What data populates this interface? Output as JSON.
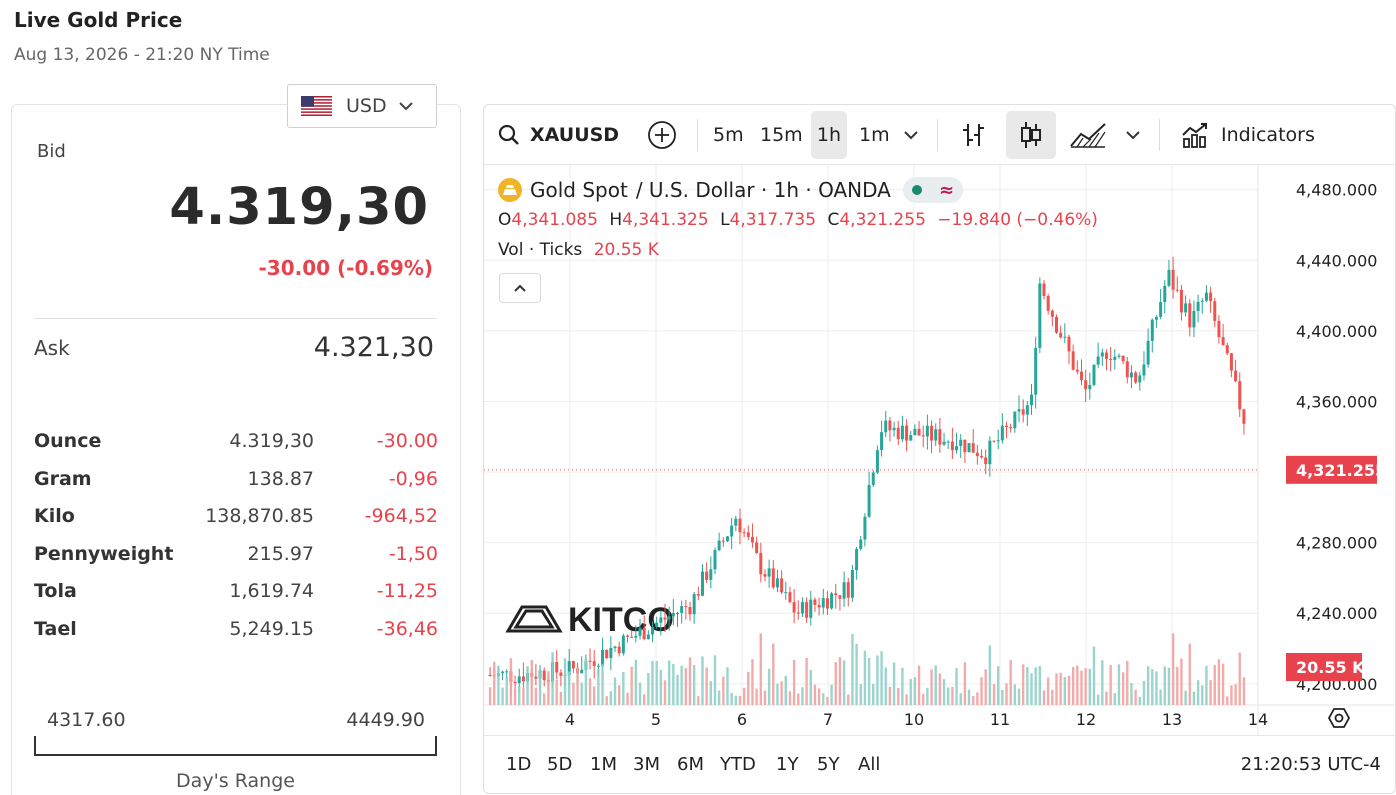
{
  "page": {
    "title": "Live Gold Price",
    "subtitle": "Aug 13, 2026 - 21:20 NY Time"
  },
  "currency": {
    "selected": "USD",
    "flag_icon": "us-flag-icon"
  },
  "quote": {
    "bid_label": "Bid",
    "bid_value": "4.319,30",
    "bid_change": "-30.00 (-0.69%)",
    "ask_label": "Ask",
    "ask_value": "4.321,30"
  },
  "units": [
    {
      "name": "Ounce",
      "price": "4.319,30",
      "change": "-30.00"
    },
    {
      "name": "Gram",
      "price": "138.87",
      "change": "-0,96"
    },
    {
      "name": "Kilo",
      "price": "138,870.85",
      "change": "-964,52"
    },
    {
      "name": "Pennyweight",
      "price": "215.97",
      "change": "-1,50"
    },
    {
      "name": "Tola",
      "price": "1,619.74",
      "change": "-11,25"
    },
    {
      "name": "Tael",
      "price": "5,249.15",
      "change": "-36,46"
    }
  ],
  "day_range": {
    "low": "4317.60",
    "high": "4449.90",
    "label": "Day's Range",
    "current_fraction": 0.01
  },
  "toolbar": {
    "symbol": "XAUUSD",
    "intervals": [
      "5m",
      "15m",
      "1h",
      "1m"
    ],
    "active_interval": "1h",
    "indicators_label": "Indicators"
  },
  "legend": {
    "title": "Gold Spot",
    "title_rest": "/ U.S. Dollar · 1h · OANDA",
    "o_label": "O",
    "o_value": "4,341.085",
    "h_label": "H",
    "h_value": "4,341.325",
    "l_label": "L",
    "l_value": "4,317.735",
    "c_label": "C",
    "c_value": "4,321.255",
    "change": "−19.840 (−0.46%)",
    "vol_label": "Vol · Ticks",
    "vol_value": "20.55 K"
  },
  "colors": {
    "up": "#26a69a",
    "down": "#ef5350",
    "accent_red": "#e8434d",
    "gold": "#f0b429"
  },
  "watermark": "KITCO",
  "chart_data": {
    "type": "candlestick",
    "y_ticks": [
      "4,480.000",
      "4,440.000",
      "4,400.000",
      "4,360.000",
      "4,320.000",
      "4,280.000",
      "4,240.000",
      "4,200.000"
    ],
    "y_tick_values": [
      4480,
      4440,
      4400,
      4360,
      4320,
      4280,
      4240,
      4200
    ],
    "x_ticks": [
      "4",
      "5",
      "6",
      "7",
      "10",
      "11",
      "12",
      "13",
      "14"
    ],
    "ylim": [
      4188,
      4494
    ],
    "last_price_label": "4,321.255",
    "last_price": 4321.255,
    "last_volume_label": "20.55 K",
    "segments": [
      {
        "x": "4",
        "open": 4205,
        "close": 4205,
        "low": 4198,
        "high": 4212
      },
      {
        "x": "5",
        "open": 4205,
        "close": 4208,
        "low": 4194,
        "high": 4215
      },
      {
        "x": "5.5",
        "open": 4208,
        "close": 4245,
        "low": 4196,
        "high": 4255
      },
      {
        "x": "6",
        "open": 4245,
        "close": 4295,
        "low": 4240,
        "high": 4305
      },
      {
        "x": "6.5",
        "open": 4295,
        "close": 4268,
        "low": 4258,
        "high": 4300
      },
      {
        "x": "6.7",
        "open": 4268,
        "close": 4240,
        "low": 4224,
        "high": 4276
      },
      {
        "x": "7",
        "open": 4240,
        "close": 4255,
        "low": 4232,
        "high": 4262
      },
      {
        "x": "7.5",
        "open": 4255,
        "close": 4345,
        "low": 4250,
        "high": 4372
      },
      {
        "x": "7.8",
        "open": 4345,
        "close": 4338,
        "low": 4322,
        "high": 4358
      },
      {
        "x": "10",
        "open": 4338,
        "close": 4330,
        "low": 4315,
        "high": 4350
      },
      {
        "x": "10.4",
        "open": 4330,
        "close": 4360,
        "low": 4318,
        "high": 4365
      },
      {
        "x": "11",
        "open": 4360,
        "close": 4428,
        "low": 4355,
        "high": 4435
      },
      {
        "x": "11.3",
        "open": 4428,
        "close": 4365,
        "low": 4358,
        "high": 4432
      },
      {
        "x": "11.7",
        "open": 4365,
        "close": 4390,
        "low": 4362,
        "high": 4398
      },
      {
        "x": "12",
        "open": 4390,
        "close": 4372,
        "low": 4365,
        "high": 4395
      },
      {
        "x": "12.4",
        "open": 4372,
        "close": 4432,
        "low": 4368,
        "high": 4440
      },
      {
        "x": "12.8",
        "open": 4432,
        "close": 4405,
        "low": 4382,
        "high": 4442
      },
      {
        "x": "13",
        "open": 4405,
        "close": 4420,
        "low": 4395,
        "high": 4450
      },
      {
        "x": "13.3",
        "open": 4420,
        "close": 4372,
        "low": 4365,
        "high": 4425
      },
      {
        "x": "13.7",
        "open": 4372,
        "close": 4350,
        "low": 4340,
        "high": 4402
      },
      {
        "x": "13.9",
        "open": 4341.085,
        "close": 4321.255,
        "low": 4317.735,
        "high": 4341.325
      }
    ]
  },
  "time_ranges": [
    "1D",
    "5D",
    "1M",
    "3M",
    "6M",
    "YTD",
    "1Y",
    "5Y",
    "All"
  ],
  "clock": "21:20:53 UTC-4"
}
